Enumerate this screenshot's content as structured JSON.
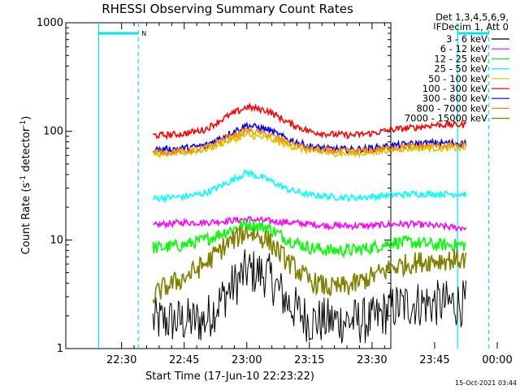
{
  "chart_data": {
    "type": "line",
    "title": "RHESSI Observing Summary Count Rates",
    "xlabel": "Start Time (17-Jun-10 22:23:22)",
    "ylabel_main": "Count Rate (s",
    "ylabel_sup1": "-1",
    "ylabel_mid": " detector",
    "ylabel_sup2": "-1",
    "ylabel_end": ")",
    "yscale": "log",
    "ylim": [
      1,
      1000
    ],
    "y_ticks": [
      {
        "value": 1,
        "label": "1"
      },
      {
        "value": 10,
        "label": "10"
      },
      {
        "value": 100,
        "label": "100"
      },
      {
        "value": 1000,
        "label": "1000"
      }
    ],
    "xlim_minutes": [
      -13.37,
      64.5
    ],
    "x_ticks": [
      {
        "minutes": -30,
        "label": "22:30"
      },
      {
        "minutes": -15,
        "label": "22:45"
      },
      {
        "minutes": 0,
        "label": "23:00"
      },
      {
        "minutes": 15,
        "label": "23:15"
      },
      {
        "minutes": 30,
        "label": "23:30"
      },
      {
        "minutes": 45,
        "label": "23:45"
      },
      {
        "minutes": 60,
        "label": "00:00"
      }
    ],
    "x_axis_offset_minutes": 30,
    "legend_header": [
      "Det 1,3,4,5,6,9,",
      "FDecim 1, Att 0"
    ],
    "series": [
      {
        "name": "3 - 6 keV",
        "color": "#000000",
        "minutes": [
          -22.5,
          -20,
          -15,
          -10,
          -5,
          0,
          5,
          10,
          15,
          20,
          25,
          30,
          35,
          40,
          45,
          50,
          52.5
        ],
        "values": [
          1.8,
          1.8,
          1.8,
          1.8,
          3.2,
          5.2,
          4.8,
          2.6,
          1.8,
          1.8,
          1.8,
          1.8,
          2.4,
          2.6,
          2.6,
          2.6,
          2.6
        ]
      },
      {
        "name": "6 - 12 keV",
        "color": "#ff00ff",
        "minutes": [
          -22.5,
          -20,
          -15,
          -10,
          -5,
          0,
          5,
          10,
          15,
          20,
          25,
          30,
          35,
          40,
          45,
          50,
          52.5
        ],
        "values": [
          13.5,
          14,
          14.5,
          14.5,
          15,
          15.5,
          15,
          14.5,
          14,
          13.5,
          13.5,
          13.5,
          14,
          14,
          13.5,
          13,
          13
        ]
      },
      {
        "name": "12 - 25 keV",
        "color": "#00ff00",
        "minutes": [
          -22.5,
          -20,
          -15,
          -10,
          -5,
          0,
          5,
          10,
          15,
          20,
          25,
          30,
          35,
          40,
          45,
          50,
          52.5
        ],
        "values": [
          8.5,
          8.5,
          9,
          10,
          12,
          14,
          13,
          10,
          8.5,
          8,
          8,
          8.5,
          9.5,
          9.5,
          9,
          9,
          9
        ]
      },
      {
        "name": "25 - 50 keV",
        "color": "#00ffff",
        "minutes": [
          -22.5,
          -20,
          -15,
          -10,
          -5,
          0,
          5,
          10,
          15,
          20,
          25,
          30,
          35,
          40,
          45,
          50,
          52.5
        ],
        "values": [
          24,
          24.5,
          25,
          27,
          33,
          42,
          36,
          29,
          26,
          25,
          24.5,
          25,
          26,
          26.5,
          26.5,
          26.5,
          26.5
        ]
      },
      {
        "name": "50 - 100 keV",
        "color": "#d4c800",
        "minutes": [
          -22.5,
          -20,
          -15,
          -10,
          -5,
          0,
          5,
          10,
          15,
          20,
          25,
          30,
          35,
          40,
          45,
          50,
          52.5
        ],
        "values": [
          62,
          62,
          64,
          68,
          80,
          92,
          86,
          74,
          66,
          63,
          62,
          64,
          68,
          70,
          70,
          70,
          70
        ]
      },
      {
        "name": "100 - 300 keV",
        "color": "#ff0000",
        "minutes": [
          -22.5,
          -20,
          -15,
          -10,
          -5,
          0,
          5,
          10,
          15,
          20,
          25,
          30,
          35,
          40,
          45,
          50,
          52.5
        ],
        "values": [
          92,
          92,
          95,
          104,
          135,
          168,
          155,
          120,
          100,
          94,
          92,
          96,
          104,
          108,
          115,
          115,
          115
        ]
      },
      {
        "name": "300 - 800 keV",
        "color": "#0000ff",
        "minutes": [
          -22.5,
          -20,
          -15,
          -10,
          -5,
          0,
          5,
          10,
          15,
          20,
          25,
          30,
          35,
          40,
          45,
          50,
          52.5
        ],
        "values": [
          68,
          68,
          70,
          74,
          92,
          114,
          104,
          84,
          73,
          69,
          68,
          70,
          74,
          77,
          78,
          78,
          78
        ]
      },
      {
        "name": "800 - 7000 keV",
        "color": "#ff8c00",
        "minutes": [
          -22.5,
          -20,
          -15,
          -10,
          -5,
          0,
          5,
          10,
          15,
          20,
          25,
          30,
          35,
          40,
          45,
          50,
          52.5
        ],
        "values": [
          64,
          64,
          66,
          70,
          86,
          102,
          94,
          79,
          69,
          66,
          65,
          67,
          71,
          73,
          74,
          74,
          74
        ]
      },
      {
        "name": "7000 - 15000 keV",
        "color": "#808000",
        "minutes": [
          -22.5,
          -20,
          -15,
          -10,
          -5,
          0,
          5,
          10,
          15,
          20,
          25,
          30,
          35,
          40,
          45,
          50,
          52.5
        ],
        "values": [
          3,
          3.6,
          4.5,
          6,
          9,
          12,
          10,
          6.2,
          4.2,
          3.6,
          3.8,
          4.6,
          5.6,
          6.2,
          6.5,
          6.6,
          6.6
        ]
      }
    ],
    "attenuator_bars": [
      {
        "label": "N",
        "start_minutes": -35.5,
        "end_minutes": -26
      },
      {
        "label": "",
        "start_minutes": 50.5,
        "end_minutes": 58
      }
    ],
    "marker_lines_minutes": {
      "solid": [
        -35.5,
        50.5
      ],
      "dashed": [
        -26,
        58
      ]
    },
    "timestamp": "15-Oct-2021 03:44"
  }
}
